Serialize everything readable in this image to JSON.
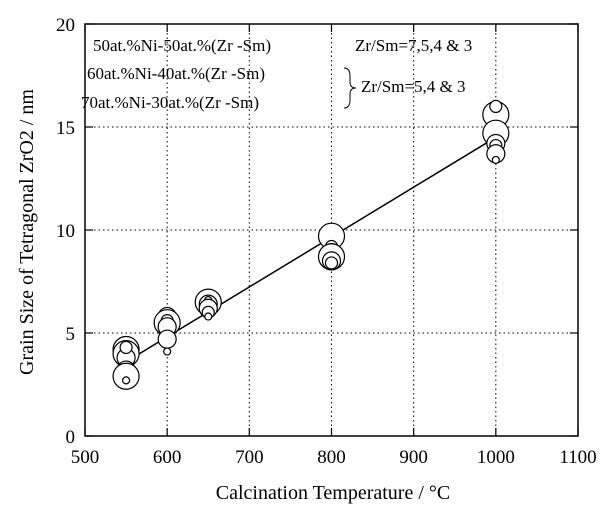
{
  "chart_data": {
    "type": "scatter",
    "xlabel": "Calcination Temperature / °C",
    "ylabel": "Grain Size of Tetragonal ZrO2 / nm",
    "xlim": [
      500,
      1100
    ],
    "ylim": [
      0,
      20
    ],
    "x_ticks": [
      500,
      600,
      700,
      800,
      900,
      1000,
      1100
    ],
    "y_ticks": [
      0,
      5,
      10,
      15,
      20
    ],
    "grid": "dotted",
    "legend_position": "top-left",
    "legend_lines": [
      "50at.%Ni-50at.%(Zr -Sm)",
      "60at.%Ni-40at.%(Zr -Sm)",
      "70at.%Ni-30at.%(Zr -Sm)"
    ],
    "legend_notes": [
      "Zr/Sm=7,5,4 & 3",
      "Zr/Sm=5,4 & 3"
    ],
    "marker_size_meaning": "marker size varies with Zr/Sm ratio and Ni content",
    "points": [
      {
        "x": 550,
        "y": 4.2,
        "size": "large"
      },
      {
        "x": 550,
        "y": 4.0,
        "size": "large"
      },
      {
        "x": 550,
        "y": 3.8,
        "size": "medium"
      },
      {
        "x": 550,
        "y": 4.3,
        "size": "small"
      },
      {
        "x": 550,
        "y": 3.2,
        "size": "medium"
      },
      {
        "x": 550,
        "y": 2.9,
        "size": "large"
      },
      {
        "x": 550,
        "y": 2.7,
        "size": "tiny"
      },
      {
        "x": 600,
        "y": 5.8,
        "size": "medium"
      },
      {
        "x": 600,
        "y": 5.5,
        "size": "large"
      },
      {
        "x": 600,
        "y": 5.6,
        "size": "small"
      },
      {
        "x": 600,
        "y": 5.3,
        "size": "medium"
      },
      {
        "x": 600,
        "y": 4.7,
        "size": "medium"
      },
      {
        "x": 600,
        "y": 4.1,
        "size": "tiny"
      },
      {
        "x": 650,
        "y": 6.5,
        "size": "large"
      },
      {
        "x": 650,
        "y": 6.4,
        "size": "medium"
      },
      {
        "x": 650,
        "y": 6.6,
        "size": "tiny"
      },
      {
        "x": 650,
        "y": 6.2,
        "size": "medium"
      },
      {
        "x": 650,
        "y": 6.0,
        "size": "small"
      },
      {
        "x": 650,
        "y": 5.8,
        "size": "tiny"
      },
      {
        "x": 800,
        "y": 9.7,
        "size": "large"
      },
      {
        "x": 800,
        "y": 9.2,
        "size": "small"
      },
      {
        "x": 800,
        "y": 8.9,
        "size": "medium"
      },
      {
        "x": 800,
        "y": 8.7,
        "size": "large"
      },
      {
        "x": 800,
        "y": 8.5,
        "size": "medium"
      },
      {
        "x": 800,
        "y": 8.4,
        "size": "small"
      },
      {
        "x": 1000,
        "y": 15.6,
        "size": "large"
      },
      {
        "x": 1000,
        "y": 16.0,
        "size": "small"
      },
      {
        "x": 1000,
        "y": 14.7,
        "size": "large"
      },
      {
        "x": 1000,
        "y": 14.2,
        "size": "medium"
      },
      {
        "x": 1000,
        "y": 14.1,
        "size": "small"
      },
      {
        "x": 1000,
        "y": 13.7,
        "size": "medium"
      },
      {
        "x": 1000,
        "y": 13.4,
        "size": "tiny"
      }
    ],
    "fit_line": {
      "x": [
        550,
        1000
      ],
      "y": [
        3.6,
        14.5
      ]
    }
  }
}
